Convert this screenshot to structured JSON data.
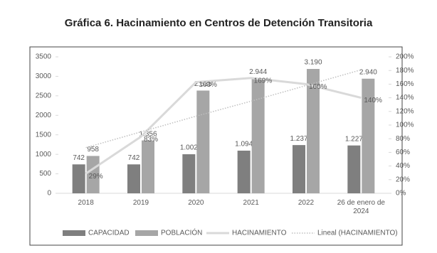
{
  "chart_data": {
    "type": "bar-line",
    "title": "Gráfica 6. Hacinamiento en Centros de Detención Transitoria",
    "categories": [
      "2018",
      "2019",
      "2020",
      "2021",
      "2022",
      "26 de enero de 2024"
    ],
    "series": [
      {
        "name": "CAPACIDAD",
        "type": "bar",
        "color": "#7f7f7f",
        "values": [
          742,
          742,
          1002,
          1094,
          1237,
          1227
        ],
        "value_labels": [
          "742",
          "742",
          "1.002",
          "1.094",
          "1.237",
          "1.227"
        ]
      },
      {
        "name": "POBLACIÓN",
        "type": "bar",
        "color": "#a6a6a6",
        "values": [
          958,
          1356,
          2635,
          2944,
          3190,
          2940
        ],
        "value_labels": [
          "958",
          "1.356",
          "2.635",
          "2.944",
          "3.190",
          "2.940"
        ]
      },
      {
        "name": "HACINAMIENTO",
        "type": "line",
        "axis": "y2",
        "color": "#d9d9d9",
        "values": [
          29,
          83,
          163,
          169,
          160,
          140
        ],
        "value_labels": [
          "29%",
          "83%",
          "163%",
          "169%",
          "160%",
          "140%"
        ]
      },
      {
        "name": "Lineal (HACINAMIENTO)",
        "type": "trend",
        "axis": "y2",
        "color": "#bfbfbf",
        "values": [
          67,
          90,
          113,
          135,
          158,
          181
        ]
      }
    ],
    "ylim": [
      0,
      3500
    ],
    "yticks": [
      0,
      500,
      1000,
      1500,
      2000,
      2500,
      3000,
      3500
    ],
    "y2lim": [
      0,
      200
    ],
    "y2ticks": [
      {
        "value": 0,
        "label": "0%"
      },
      {
        "value": 20,
        "label": "20%"
      },
      {
        "value": 40,
        "label": "40%"
      },
      {
        "value": 60,
        "label": "60%"
      },
      {
        "value": 80,
        "label": "80%"
      },
      {
        "value": 100,
        "label": "100%"
      },
      {
        "value": 120,
        "label": "120%"
      },
      {
        "value": 140,
        "label": "140%"
      },
      {
        "value": 160,
        "label": "160%"
      },
      {
        "value": 180,
        "label": "180%"
      },
      {
        "value": 200,
        "label": "200%"
      }
    ],
    "legend": "bottom"
  }
}
